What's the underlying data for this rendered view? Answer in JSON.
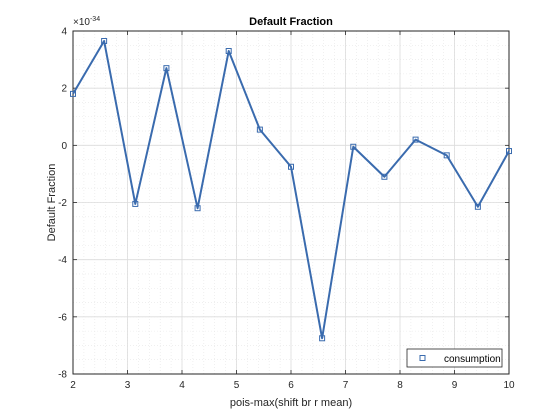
{
  "chart_data": {
    "type": "line",
    "title": "Default Fraction",
    "xlabel": "pois-max(shift br r mean)",
    "ylabel": "Default Fraction",
    "y_exponent_label": "×10",
    "y_exponent_power": "-34",
    "xlim": [
      2,
      10
    ],
    "ylim": [
      -8,
      4
    ],
    "xticks": [
      "2",
      "3",
      "4",
      "5",
      "6",
      "7",
      "8",
      "9",
      "10"
    ],
    "yticks": [
      "-8",
      "-6",
      "-4",
      "-2",
      "0",
      "2",
      "4"
    ],
    "grid": true,
    "legend_position": "bottom-right",
    "series": [
      {
        "name": "consumption",
        "color": "#3a6bae",
        "marker": "square",
        "x": [
          2.0,
          2.571,
          3.143,
          3.714,
          4.286,
          4.857,
          5.429,
          6.0,
          6.571,
          7.143,
          7.714,
          8.286,
          8.857,
          9.429,
          10.0
        ],
        "y": [
          1.8,
          3.65,
          -2.05,
          2.7,
          -2.2,
          3.3,
          0.55,
          -0.75,
          -6.75,
          -0.05,
          -1.1,
          0.2,
          -0.35,
          -2.15,
          -0.2
        ]
      }
    ]
  }
}
